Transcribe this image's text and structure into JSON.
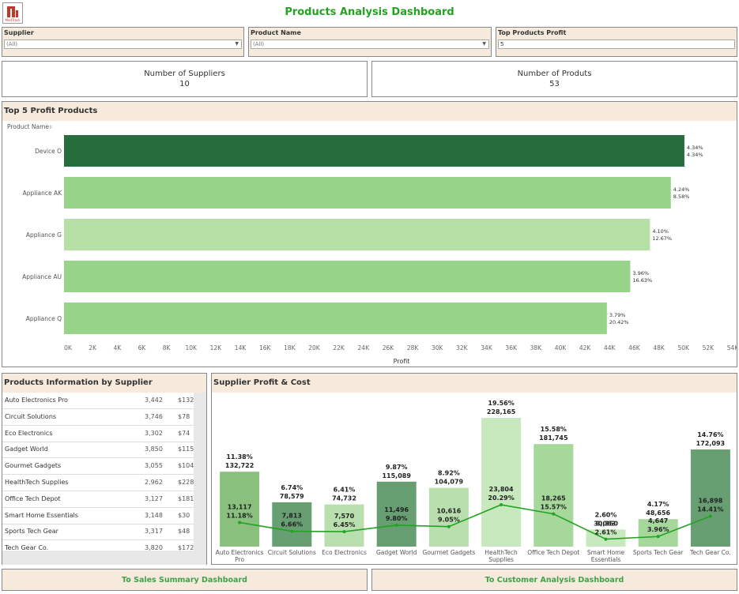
{
  "header": {
    "title": "Products Analysis Dashboard"
  },
  "filters": [
    {
      "label": "Supplier",
      "value": "(All)"
    },
    {
      "label": "Product Name",
      "value": "(All)"
    },
    {
      "label": "Top Products Profit",
      "value": "5"
    }
  ],
  "kpis": [
    {
      "title": "Number of Suppliers",
      "value": "10"
    },
    {
      "title": "Number of Produts",
      "value": "53"
    }
  ],
  "top_products": {
    "panel_title": "Top 5 Profit Products",
    "axis_header": "Product Name",
    "xlabel": "Profit",
    "tick_labels": [
      "0K",
      "2K",
      "4K",
      "6K",
      "8K",
      "10K",
      "12K",
      "14K",
      "16K",
      "18K",
      "20K",
      "22K",
      "24K",
      "26K",
      "28K",
      "30K",
      "32K",
      "34K",
      "36K",
      "38K",
      "40K",
      "42K",
      "44K",
      "46K",
      "48K",
      "50K",
      "52K",
      "54K"
    ]
  },
  "supplier_table": {
    "panel_title": "Products Information by Supplier",
    "rows": [
      {
        "name": "Auto Electronics Pro",
        "qty": "3,442",
        "amount": "$132"
      },
      {
        "name": "Circuit Solutions",
        "qty": "3,746",
        "amount": "$78"
      },
      {
        "name": "Eco Electronics",
        "qty": "3,302",
        "amount": "$74"
      },
      {
        "name": "Gadget World",
        "qty": "3,850",
        "amount": "$115"
      },
      {
        "name": "Gourmet Gadgets",
        "qty": "3,055",
        "amount": "$104"
      },
      {
        "name": "HealthTech Supplies",
        "qty": "2,962",
        "amount": "$228"
      },
      {
        "name": "Office Tech Depot",
        "qty": "3,127",
        "amount": "$181"
      },
      {
        "name": "Smart Home Essentials",
        "qty": "3,148",
        "amount": "$30"
      },
      {
        "name": "Sports Tech Gear",
        "qty": "3,317",
        "amount": "$48"
      },
      {
        "name": "Tech Gear Co.",
        "qty": "3,820",
        "amount": "$172"
      }
    ]
  },
  "supplier_chart": {
    "panel_title": "Supplier Profit & Cost"
  },
  "buttons": {
    "sales": "To Sales Summary Dashboard",
    "customer": "To Customer Analysis Dashboard"
  },
  "chart_data": [
    {
      "type": "bar",
      "orientation": "horizontal",
      "title": "Top 5 Profit Products",
      "xlabel": "Profit",
      "ylabel": "Product Name",
      "xlim": [
        0,
        54000
      ],
      "grid": false,
      "categories": [
        "Device O",
        "Appliance AK",
        "Appliance G",
        "Appliance AU",
        "Appliance Q"
      ],
      "values": [
        50400,
        49300,
        47600,
        46000,
        44100
      ],
      "labels_line1": [
        "4.34%",
        "4.24%",
        "4.10%",
        "3.96%",
        "3.79%"
      ],
      "labels_line2": [
        "4.34%",
        "8.58%",
        "12.67%",
        "16.63%",
        "20.42%"
      ],
      "colors": [
        "#256d3c",
        "#97d48a",
        "#b6e0a6",
        "#97d48a",
        "#97d48a"
      ]
    },
    {
      "type": "bar",
      "title": "Supplier Profit & Cost",
      "categories": [
        "Auto Electronics Pro",
        "Circuit Solutions",
        "Eco Electronics",
        "Gadget World",
        "Gourmet Gadgets",
        "HealthTech Supplies",
        "Office Tech Depot",
        "Smart Home Essentials",
        "Sports Tech Gear",
        "Tech Gear Co."
      ],
      "category_lines": [
        [
          "Auto Electronics",
          "Pro"
        ],
        [
          "Circuit Solutions"
        ],
        [
          "Eco Electronics"
        ],
        [
          "Gadget World"
        ],
        [
          "Gourmet Gadgets"
        ],
        [
          "HealthTech",
          "Supplies"
        ],
        [
          "Office Tech Depot"
        ],
        [
          "Smart Home",
          "Essentials"
        ],
        [
          "Sports Tech Gear"
        ],
        [
          "Tech Gear Co."
        ]
      ],
      "series": [
        {
          "name": "Profit",
          "values": [
            132722,
            78579,
            74732,
            115089,
            104079,
            228165,
            181745,
            30350,
            48656,
            172093
          ],
          "pct_labels": [
            "11.38%",
            "6.74%",
            "6.41%",
            "9.87%",
            "8.92%",
            "19.56%",
            "15.58%",
            "2.60%",
            "4.17%",
            "14.76%"
          ],
          "value_labels": [
            "132,722",
            "78,579",
            "74,732",
            "115,089",
            "104,079",
            "228,165",
            "181,745",
            "30,350",
            "48,656",
            "172,093"
          ],
          "colors": [
            "#8ac07e",
            "#679e72",
            "#b9dfae",
            "#679e72",
            "#b9dfae",
            "#c8e9bd",
            "#a6d89b",
            "#c8e9bd",
            "#a6d89b",
            "#679e72"
          ]
        },
        {
          "name": "Cost",
          "type": "line",
          "values": [
            13117,
            7813,
            7570,
            11496,
            10616,
            23804,
            18265,
            3063,
            4647,
            16898
          ],
          "value_labels": [
            "13,117",
            "7,813",
            "7,570",
            "11,496",
            "10,616",
            "23,804",
            "18,265",
            "3,063",
            "4,647",
            "16,898"
          ],
          "pct_labels": [
            "11.18%",
            "6.66%",
            "6.45%",
            "9.80%",
            "9.05%",
            "20.29%",
            "15.57%",
            "2.61%",
            "3.96%",
            "14.41%"
          ],
          "color": "#22a322"
        }
      ],
      "ylim": [
        0,
        240000
      ]
    }
  ]
}
